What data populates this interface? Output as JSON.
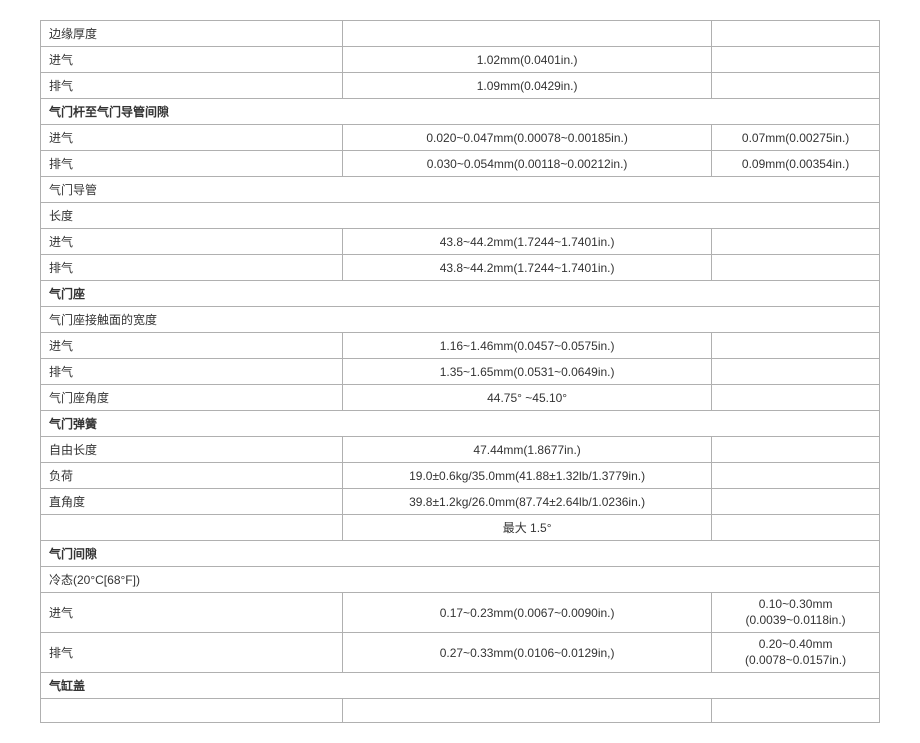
{
  "rows": [
    {
      "type": "3col",
      "c1": "边缘厚度",
      "c2": "",
      "c3": "",
      "bold": false
    },
    {
      "type": "3col",
      "c1": "进气",
      "c2": "1.02mm(0.0401in.)",
      "c3": "",
      "bold": false
    },
    {
      "type": "3col",
      "c1": "排气",
      "c2": "1.09mm(0.0429in.)",
      "c3": "",
      "bold": false
    },
    {
      "type": "full",
      "c1": "气门杆至气门导管间隙",
      "bold": true
    },
    {
      "type": "3col",
      "c1": "进气",
      "c2": "0.020~0.047mm(0.00078~0.00185in.)",
      "c3": "0.07mm(0.00275in.)",
      "bold": false
    },
    {
      "type": "3col",
      "c1": "排气",
      "c2": "0.030~0.054mm(0.00118~0.00212in.)",
      "c3": "0.09mm(0.00354in.)",
      "bold": false
    },
    {
      "type": "full",
      "c1": "气门导管",
      "bold": false
    },
    {
      "type": "full",
      "c1": "长度",
      "bold": false
    },
    {
      "type": "3col",
      "c1": "进气",
      "c2": "43.8~44.2mm(1.7244~1.7401in.)",
      "c3": "",
      "bold": false
    },
    {
      "type": "3col",
      "c1": "排气",
      "c2": "43.8~44.2mm(1.7244~1.7401in.)",
      "c3": "",
      "bold": false
    },
    {
      "type": "full",
      "c1": "气门座",
      "bold": true
    },
    {
      "type": "full",
      "c1": "气门座接触面的宽度",
      "bold": false
    },
    {
      "type": "3col",
      "c1": "进气",
      "c2": "1.16~1.46mm(0.0457~0.0575in.)",
      "c3": "",
      "bold": false
    },
    {
      "type": "3col",
      "c1": "排气",
      "c2": "1.35~1.65mm(0.0531~0.0649in.)",
      "c3": "",
      "bold": false
    },
    {
      "type": "3col",
      "c1": "气门座角度",
      "c2": "44.75° ~45.10°",
      "c3": "",
      "bold": false
    },
    {
      "type": "full",
      "c1": "气门弹簧",
      "bold": true
    },
    {
      "type": "3col",
      "c1": "自由长度",
      "c2": "47.44mm(1.8677in.)",
      "c3": "",
      "bold": false
    },
    {
      "type": "3col",
      "c1": "负荷",
      "c2": "19.0±0.6kg/35.0mm(41.88±1.32lb/1.3779in.)",
      "c3": "",
      "bold": false
    },
    {
      "type": "3col",
      "c1": "直角度",
      "c2": "39.8±1.2kg/26.0mm(87.74±2.64lb/1.0236in.)",
      "c3": "",
      "bold": false
    },
    {
      "type": "3col",
      "c1": "",
      "c2": "最大 1.5°",
      "c3": "",
      "bold": false
    },
    {
      "type": "full",
      "c1": "气门间隙",
      "bold": true
    },
    {
      "type": "full",
      "c1": "冷态(20°C[68°F])",
      "bold": false
    },
    {
      "type": "3col-multi",
      "c1": "进气",
      "c2": "0.17~0.23mm(0.0067~0.0090in.)",
      "c3a": "0.10~0.30mm",
      "c3b": "(0.0039~0.0118in.)",
      "bold": false
    },
    {
      "type": "3col-multi",
      "c1": "排气",
      "c2": "0.27~0.33mm(0.0106~0.0129in,)",
      "c3a": "0.20~0.40mm",
      "c3b": "(0.0078~0.0157in.)",
      "bold": false
    },
    {
      "type": "full",
      "c1": "气缸盖",
      "bold": true
    },
    {
      "type": "3col",
      "c1": "",
      "c2": "",
      "c3": "",
      "bold": false
    }
  ]
}
